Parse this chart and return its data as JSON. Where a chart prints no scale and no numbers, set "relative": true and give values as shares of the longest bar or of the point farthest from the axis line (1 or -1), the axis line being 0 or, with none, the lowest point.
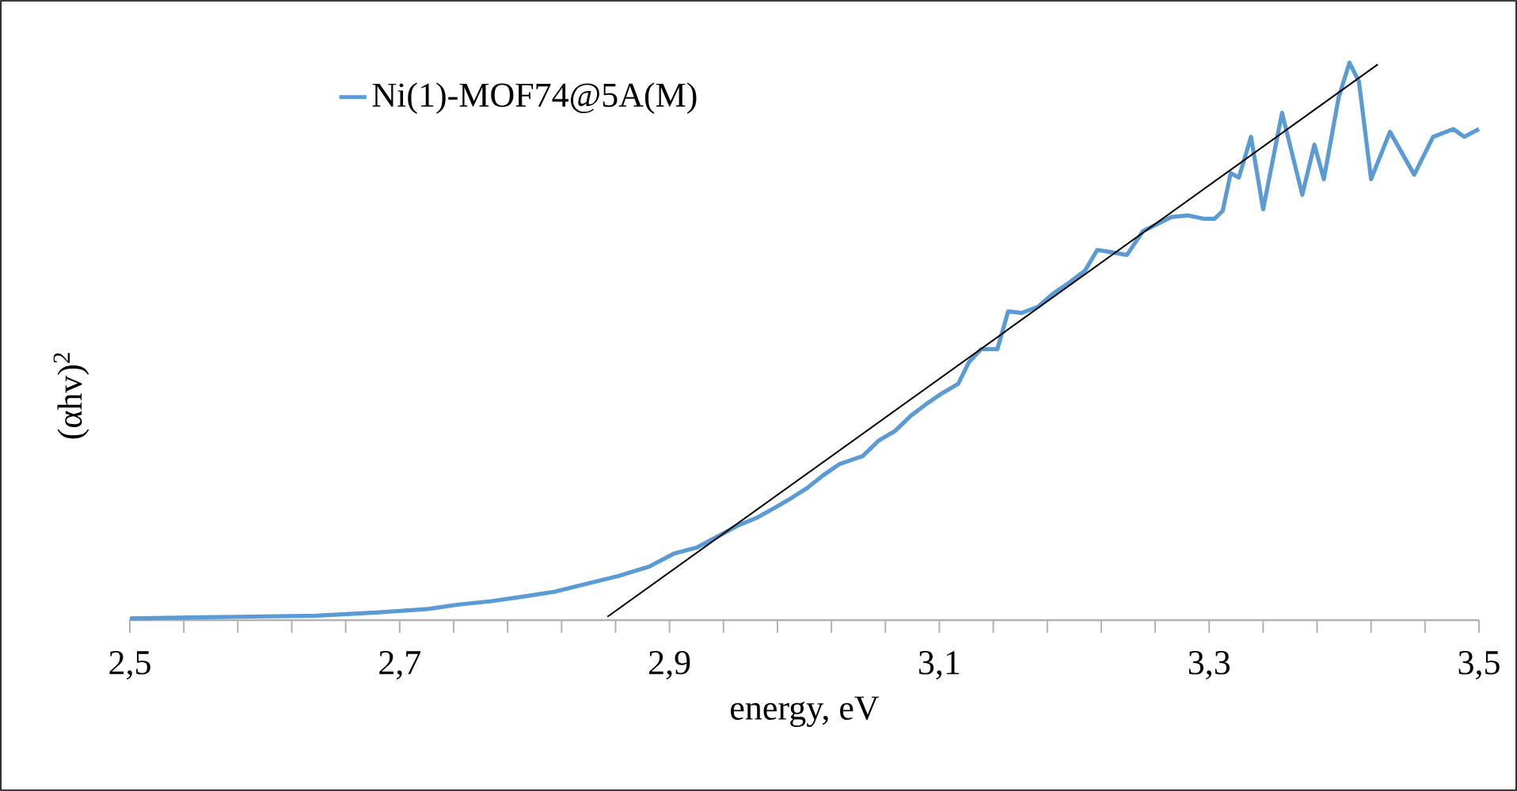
{
  "chart_data": {
    "type": "line",
    "xlabel": "energy, eV",
    "ylabel": "(αhv)$^{2}$",
    "relative": true,
    "xlim": [
      2.5,
      3.5
    ],
    "xticks": [
      {
        "value": 2.5,
        "label": "2,5"
      },
      {
        "value": 2.7,
        "label": "2,7"
      },
      {
        "value": 2.9,
        "label": "2,9"
      },
      {
        "value": 3.1,
        "label": "3,1"
      },
      {
        "value": 3.3,
        "label": "3,3"
      },
      {
        "value": 3.5,
        "label": "3,5"
      }
    ],
    "legend": "top left",
    "series": [
      {
        "name": "Ni(1)-MOF74@5A(M)",
        "color": "#5b9bd5",
        "x": [
          2.5,
          2.58,
          2.638,
          2.685,
          2.721,
          2.744,
          2.768,
          2.791,
          2.815,
          2.838,
          2.862,
          2.885,
          2.903,
          2.92,
          2.938,
          2.95,
          2.965,
          2.979,
          2.991,
          3.002,
          3.014,
          3.026,
          3.043,
          3.055,
          3.067,
          3.079,
          3.09,
          3.102,
          3.114,
          3.122,
          3.131,
          3.143,
          3.151,
          3.161,
          3.173,
          3.184,
          3.196,
          3.208,
          3.217,
          3.225,
          3.239,
          3.251,
          3.272,
          3.284,
          3.296,
          3.304,
          3.31,
          3.316,
          3.322,
          3.331,
          3.34,
          3.354,
          3.369,
          3.378,
          3.385,
          3.396,
          3.404,
          3.411,
          3.42,
          3.434,
          3.452,
          3.466,
          3.481,
          3.489,
          3.5
        ],
        "values": [
          0.003,
          0.006,
          0.008,
          0.014,
          0.02,
          0.028,
          0.034,
          0.042,
          0.051,
          0.065,
          0.079,
          0.096,
          0.119,
          0.13,
          0.153,
          0.169,
          0.184,
          0.203,
          0.22,
          0.237,
          0.26,
          0.28,
          0.294,
          0.322,
          0.339,
          0.367,
          0.387,
          0.407,
          0.424,
          0.463,
          0.486,
          0.486,
          0.554,
          0.551,
          0.562,
          0.585,
          0.605,
          0.627,
          0.664,
          0.661,
          0.655,
          0.698,
          0.723,
          0.726,
          0.72,
          0.72,
          0.734,
          0.802,
          0.794,
          0.867,
          0.737,
          0.91,
          0.763,
          0.853,
          0.791,
          0.938,
          1,
          0.966,
          0.791,
          0.876,
          0.799,
          0.867,
          0.881,
          0.867,
          0.881
        ]
      },
      {
        "type": "line",
        "color": "#000000",
        "x": [
          2.854,
          3.425
        ],
        "values": [
          0.006,
          0.997
        ]
      }
    ]
  }
}
